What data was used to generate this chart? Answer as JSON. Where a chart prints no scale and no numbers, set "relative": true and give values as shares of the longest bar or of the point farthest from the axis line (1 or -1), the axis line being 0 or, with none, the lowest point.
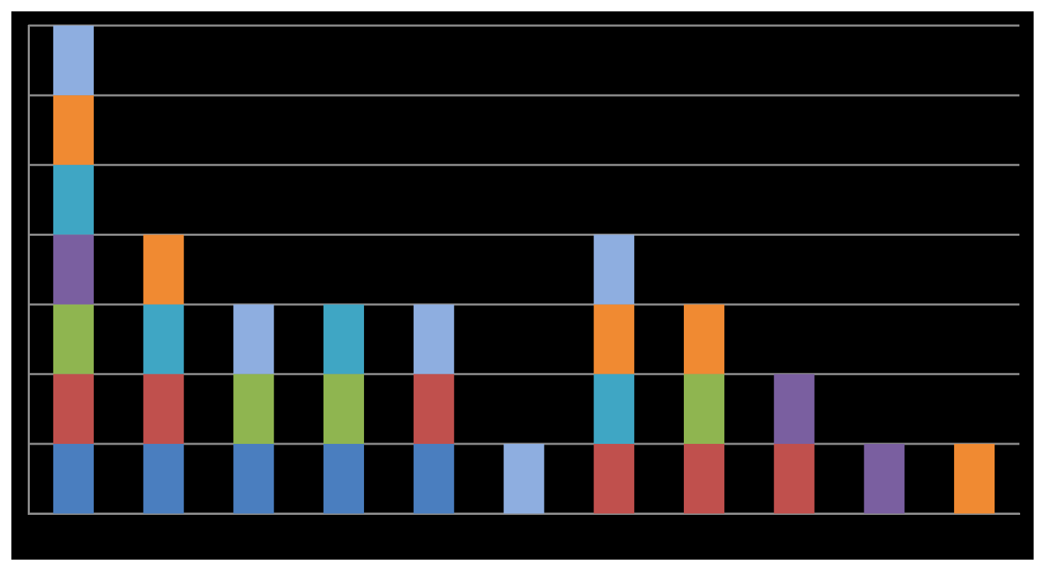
{
  "chart_data": {
    "type": "bar",
    "stacked": true,
    "relative": true,
    "grid": "y",
    "legend": false,
    "categories": [
      null,
      null,
      null,
      null,
      null,
      null,
      null,
      null,
      null,
      null,
      null
    ],
    "series": [
      {
        "color": "#4a7ebf",
        "values": [
          0.142857,
          0.142857,
          0.142857,
          0.142857,
          0.142857,
          null,
          null,
          null,
          null,
          null,
          null
        ]
      },
      {
        "color": "#c0504d",
        "values": [
          0.142857,
          0.142857,
          null,
          null,
          0.142857,
          null,
          0.142857,
          0.142857,
          0.142857,
          null,
          null
        ]
      },
      {
        "color": "#8fb550",
        "values": [
          0.142857,
          null,
          0.142857,
          0.142857,
          null,
          null,
          null,
          0.142857,
          null,
          null,
          null
        ]
      },
      {
        "color": "#7a5fa0",
        "values": [
          0.142857,
          null,
          null,
          null,
          null,
          null,
          null,
          null,
          0.142857,
          0.142857,
          null
        ]
      },
      {
        "color": "#3fa6c4",
        "values": [
          0.142857,
          0.142857,
          null,
          0.142857,
          null,
          null,
          0.142857,
          null,
          null,
          null,
          null
        ]
      },
      {
        "color": "#f08a32",
        "values": [
          0.142857,
          0.142857,
          null,
          null,
          null,
          null,
          0.142857,
          0.142857,
          null,
          null,
          0.142857
        ]
      },
      {
        "color": "#8eaee0",
        "values": [
          0.142857,
          null,
          0.142857,
          null,
          0.142857,
          0.142857,
          0.142857,
          null,
          null,
          null,
          null
        ]
      }
    ]
  }
}
